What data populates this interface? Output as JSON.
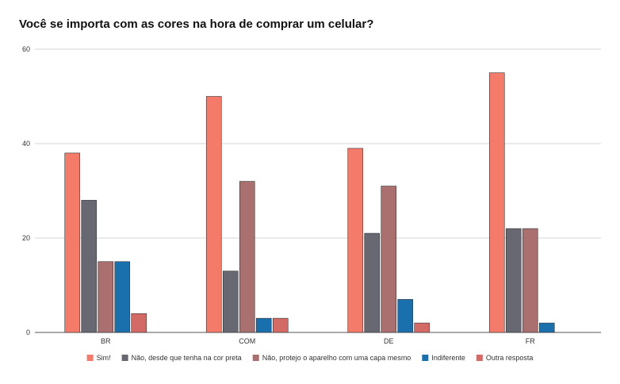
{
  "chart_data": {
    "type": "bar",
    "title": "Você se importa com as cores na hora de comprar um celular?",
    "xlabel": "",
    "ylabel": "",
    "ylim": [
      0,
      60
    ],
    "yticks": [
      0,
      20,
      40,
      60
    ],
    "grid": true,
    "legend_position": "bottom",
    "categories": [
      "BR",
      "COM",
      "DE",
      "FR"
    ],
    "series": [
      {
        "name": "Sim!",
        "color": "#f47a69",
        "values": [
          38,
          50,
          39,
          55
        ]
      },
      {
        "name": "Não, desde que tenha na cor preta",
        "color": "#676872",
        "values": [
          28,
          13,
          21,
          22
        ]
      },
      {
        "name": "Não, protejo o aparelho com uma capa mesmo",
        "color": "#aa6f6f",
        "values": [
          15,
          32,
          31,
          22
        ]
      },
      {
        "name": "Indiferente",
        "color": "#1a6fad",
        "values": [
          15,
          3,
          7,
          2
        ]
      },
      {
        "name": "Outra resposta",
        "color": "#d46a66",
        "values": [
          4,
          3,
          2,
          0
        ]
      }
    ]
  }
}
